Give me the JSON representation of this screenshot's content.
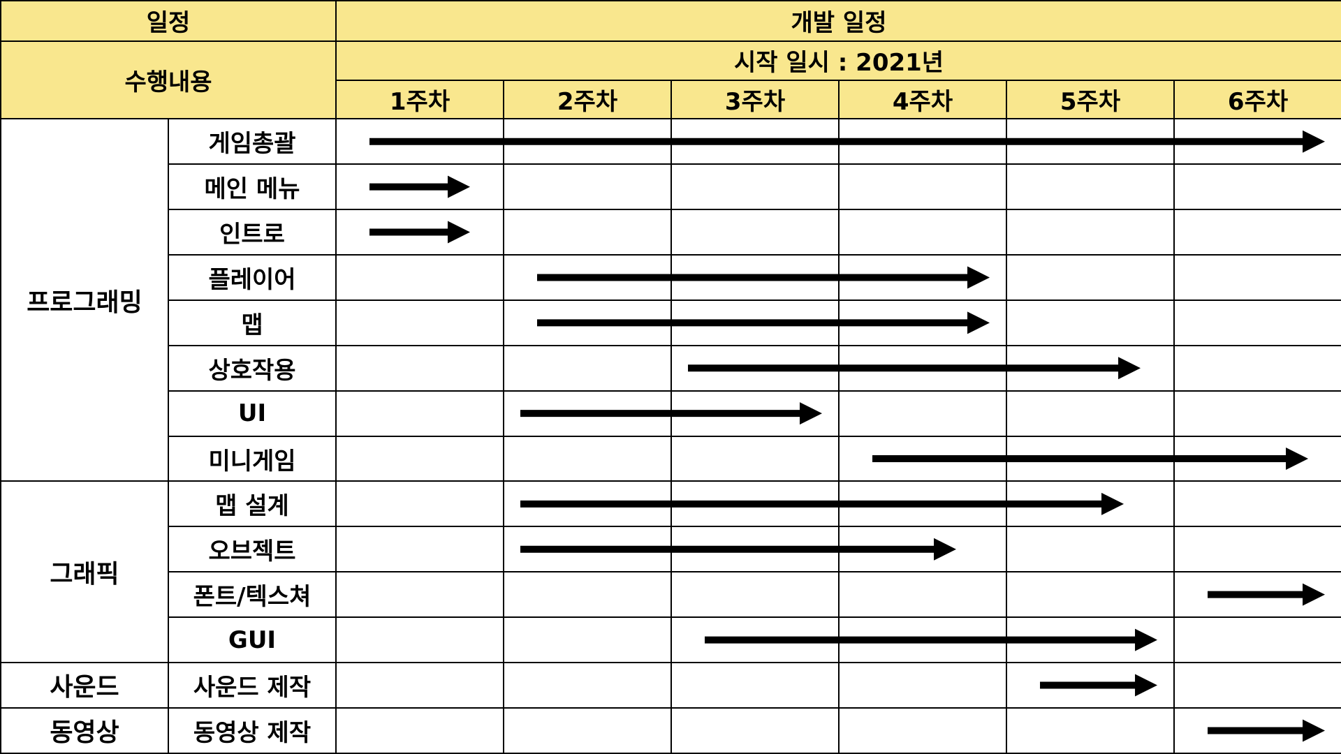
{
  "header": {
    "schedule_label": "일정",
    "dev_schedule_label": "개발 일정",
    "tasks_label": "수행내용",
    "start_label": "시작 일시 : 2021년"
  },
  "weeks": [
    "1주차",
    "2주차",
    "3주차",
    "4주차",
    "5주차",
    "6주차"
  ],
  "categories": [
    {
      "name": "프로그래밍",
      "tasks": [
        "게임총괄",
        "메인 메뉴",
        "인트로",
        "플레이어",
        "맵",
        "상호작용",
        "UI",
        "미니게임"
      ]
    },
    {
      "name": "그래픽",
      "tasks": [
        "맵 설계",
        "오브젝트",
        "폰트/텍스쳐",
        "GUI"
      ]
    },
    {
      "name": "사운드",
      "tasks": [
        "사운드 제작"
      ]
    },
    {
      "name": "동영상",
      "tasks": [
        "동영상 제작"
      ]
    }
  ],
  "colors": {
    "header_bg": "#F9E78E",
    "border": "#000000",
    "arrow": "#000000"
  },
  "chart_data": {
    "type": "gantt",
    "unit": "week",
    "tasks": [
      {
        "category": "프로그래밍",
        "task": "게임총괄",
        "start": 0.2,
        "end": 5.9
      },
      {
        "category": "프로그래밍",
        "task": "메인 메뉴",
        "start": 0.2,
        "end": 0.8
      },
      {
        "category": "프로그래밍",
        "task": "인트로",
        "start": 0.2,
        "end": 0.8
      },
      {
        "category": "프로그래밍",
        "task": "플레이어",
        "start": 1.2,
        "end": 3.9
      },
      {
        "category": "프로그래밍",
        "task": "맵",
        "start": 1.2,
        "end": 3.9
      },
      {
        "category": "프로그래밍",
        "task": "상호작용",
        "start": 2.1,
        "end": 4.8
      },
      {
        "category": "프로그래밍",
        "task": "UI",
        "start": 1.1,
        "end": 2.9
      },
      {
        "category": "프로그래밍",
        "task": "미니게임",
        "start": 3.2,
        "end": 5.8
      },
      {
        "category": "그래픽",
        "task": "맵 설계",
        "start": 1.1,
        "end": 4.7
      },
      {
        "category": "그래픽",
        "task": "오브젝트",
        "start": 1.1,
        "end": 3.7
      },
      {
        "category": "그래픽",
        "task": "폰트/텍스쳐",
        "start": 5.2,
        "end": 5.9
      },
      {
        "category": "그래픽",
        "task": "GUI",
        "start": 2.2,
        "end": 4.9
      },
      {
        "category": "사운드",
        "task": "사운드 제작",
        "start": 4.2,
        "end": 4.9
      },
      {
        "category": "동영상",
        "task": "동영상 제작",
        "start": 5.2,
        "end": 5.9
      }
    ]
  }
}
